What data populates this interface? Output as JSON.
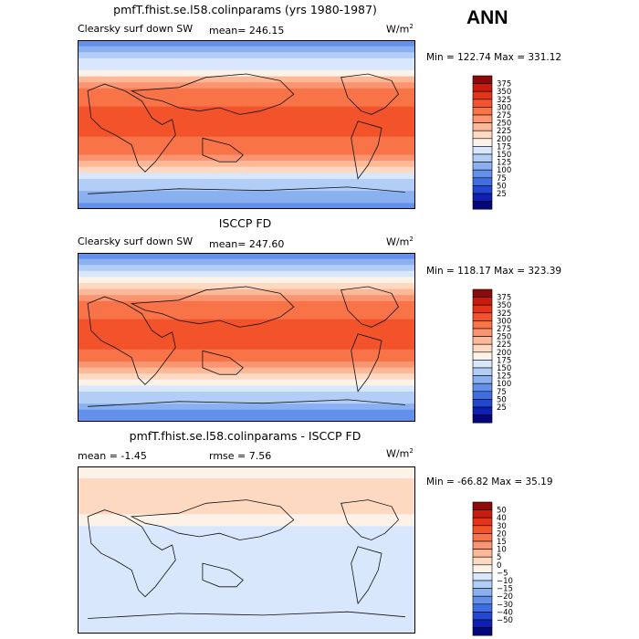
{
  "season": "ANN",
  "units_base": "W/m",
  "units_exp": "2",
  "chart_data": [
    {
      "type": "heatmap",
      "title": "pmfT.fhist.se.l58.colinparams (yrs 1980-1987)",
      "field": "Clearsky surf down SW",
      "mean_label": "mean=",
      "mean": "246.15",
      "range_text": "Min = 122.74 Max = 331.12",
      "min": 122.74,
      "max": 331.12,
      "levels": [
        375,
        350,
        325,
        300,
        275,
        250,
        225,
        200,
        175,
        150,
        125,
        100,
        75,
        50,
        25
      ],
      "level_labels": [
        "375",
        "350",
        "325",
        "300",
        "275",
        "250",
        "225",
        "200",
        "175",
        "150",
        "125",
        "100",
        "75",
        "50",
        "25"
      ],
      "colors": [
        "#8c0a0a",
        "#c81c10",
        "#e43418",
        "#f2532b",
        "#f87348",
        "#fb9470",
        "#fdb898",
        "#fdd9c2",
        "#fdf2e8",
        "#d8e7fb",
        "#b2cdf6",
        "#8ab0ef",
        "#6390ea",
        "#3f6ee0",
        "#2248d2",
        "#0d20b2",
        "#03077a"
      ],
      "profile": [
        0.28,
        0.34,
        0.38,
        0.42,
        0.46,
        0.52,
        0.6,
        0.66,
        0.72,
        0.76,
        0.78,
        0.8,
        0.82,
        0.83,
        0.82,
        0.8,
        0.78,
        0.75,
        0.72,
        0.68,
        0.62,
        0.54,
        0.46,
        0.4,
        0.36,
        0.33,
        0.3,
        0.28
      ]
    },
    {
      "type": "heatmap",
      "title": "ISCCP FD",
      "field": "Clearsky surf down SW",
      "mean_label": "mean=",
      "mean": "247.60",
      "range_text": "Min = 118.17 Max = 323.39",
      "min": 118.17,
      "max": 323.39,
      "levels": [
        375,
        350,
        325,
        300,
        275,
        250,
        225,
        200,
        175,
        150,
        125,
        100,
        75,
        50,
        25
      ],
      "level_labels": [
        "375",
        "350",
        "325",
        "300",
        "275",
        "250",
        "225",
        "200",
        "175",
        "150",
        "125",
        "100",
        "75",
        "50",
        "25"
      ],
      "colors": [
        "#8c0a0a",
        "#c81c10",
        "#e43418",
        "#f2532b",
        "#f87348",
        "#fb9470",
        "#fdb898",
        "#fdd9c2",
        "#fdf2e8",
        "#d8e7fb",
        "#b2cdf6",
        "#8ab0ef",
        "#6390ea",
        "#3f6ee0",
        "#2248d2",
        "#0d20b2",
        "#03077a"
      ],
      "profile": [
        0.24,
        0.3,
        0.36,
        0.42,
        0.48,
        0.54,
        0.62,
        0.68,
        0.72,
        0.76,
        0.78,
        0.8,
        0.81,
        0.82,
        0.81,
        0.79,
        0.77,
        0.74,
        0.7,
        0.64,
        0.58,
        0.52,
        0.46,
        0.4,
        0.35,
        0.31,
        0.28,
        0.26
      ]
    },
    {
      "type": "heatmap",
      "title": "pmfT.fhist.se.l58.colinparams - ISCCP FD",
      "mean_label": "mean =",
      "mean": "-1.45",
      "rmse_label": "rmse =",
      "rmse": "7.56",
      "range_text": "Min = -66.82 Max =  35.19",
      "min": -66.82,
      "max": 35.19,
      "levels": [
        50,
        40,
        30,
        20,
        15,
        10,
        5,
        0,
        -5,
        -10,
        -15,
        -20,
        -30,
        -40,
        -50
      ],
      "level_labels": [
        "50",
        "40",
        "30",
        "20",
        "15",
        "10",
        "5",
        "0",
        "−5",
        "−10",
        "−15",
        "−20",
        "−30",
        "−40",
        "−50"
      ],
      "colors": [
        "#8c0a0a",
        "#c81c10",
        "#e43418",
        "#f2532b",
        "#f87348",
        "#fb9470",
        "#fdb898",
        "#fdd9c2",
        "#fdf2e8",
        "#d8e7fb",
        "#b2cdf6",
        "#8ab0ef",
        "#6390ea",
        "#3f6ee0",
        "#2248d2",
        "#0d20b2",
        "#03077a"
      ],
      "profile": [
        0.5,
        0.52,
        0.55,
        0.57,
        0.56,
        0.55,
        0.54,
        0.56,
        0.52,
        0.5,
        0.45,
        0.44,
        0.43,
        0.42,
        0.44,
        0.42,
        0.41,
        0.43,
        0.42,
        0.44,
        0.45,
        0.44,
        0.43,
        0.44,
        0.45,
        0.44,
        0.45,
        0.44
      ]
    }
  ]
}
